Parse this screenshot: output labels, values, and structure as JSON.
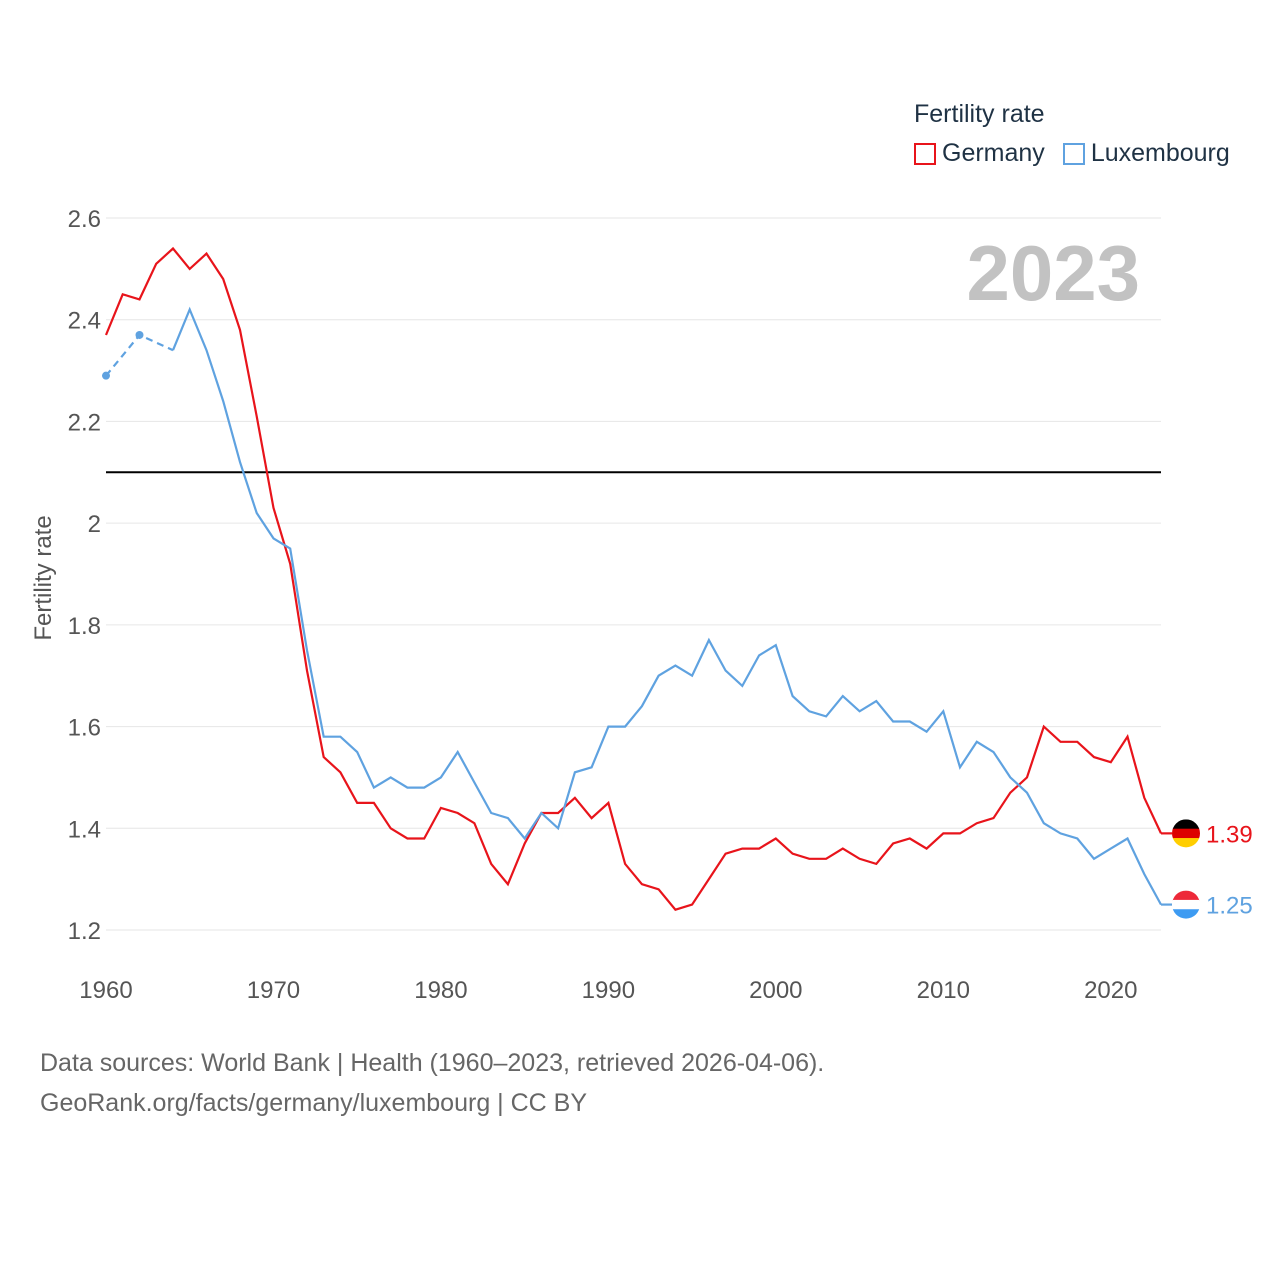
{
  "legend": {
    "title": "Fertility rate"
  },
  "year_label": "2023",
  "reference_line": {
    "value": 2.1,
    "color": "#000000"
  },
  "sources": {
    "line1": "Data sources: World Bank | Health (1960–2023, retrieved 2026-04-06).",
    "line2": "GeoRank.org/facts/germany/luxembourg | CC BY"
  },
  "chart_data": {
    "type": "line",
    "title": "",
    "xlabel": "",
    "ylabel": "Fertility rate",
    "xlim": [
      1960,
      2023
    ],
    "ylim": [
      1.2,
      2.6
    ],
    "x_ticks": [
      1960,
      1970,
      1980,
      1990,
      2000,
      2010,
      2020
    ],
    "y_ticks": [
      1.2,
      1.4,
      1.6,
      1.8,
      2,
      2.2,
      2.4,
      2.6
    ],
    "y_tick_labels": [
      "1.2",
      "1.4",
      "1.6",
      "1.8",
      "2",
      "2.2",
      "2.4",
      "2.6"
    ],
    "x": [
      1960,
      1961,
      1962,
      1963,
      1964,
      1965,
      1966,
      1967,
      1968,
      1969,
      1970,
      1971,
      1972,
      1973,
      1974,
      1975,
      1976,
      1977,
      1978,
      1979,
      1980,
      1981,
      1982,
      1983,
      1984,
      1985,
      1986,
      1987,
      1988,
      1989,
      1990,
      1991,
      1992,
      1993,
      1994,
      1995,
      1996,
      1997,
      1998,
      1999,
      2000,
      2001,
      2002,
      2003,
      2004,
      2005,
      2006,
      2007,
      2008,
      2009,
      2010,
      2011,
      2012,
      2013,
      2014,
      2015,
      2016,
      2017,
      2018,
      2019,
      2020,
      2021,
      2022,
      2023
    ],
    "series": [
      {
        "name": "Germany",
        "color": "#e8141b",
        "end_label": "1.39",
        "flag": "germany",
        "values": [
          2.37,
          2.45,
          2.44,
          2.51,
          2.54,
          2.5,
          2.53,
          2.48,
          2.38,
          2.21,
          2.03,
          1.92,
          1.71,
          1.54,
          1.51,
          1.45,
          1.45,
          1.4,
          1.38,
          1.38,
          1.44,
          1.43,
          1.41,
          1.33,
          1.29,
          1.37,
          1.43,
          1.43,
          1.46,
          1.42,
          1.45,
          1.33,
          1.29,
          1.28,
          1.24,
          1.25,
          1.3,
          1.35,
          1.36,
          1.36,
          1.38,
          1.35,
          1.34,
          1.34,
          1.36,
          1.34,
          1.33,
          1.37,
          1.38,
          1.36,
          1.39,
          1.39,
          1.41,
          1.42,
          1.47,
          1.5,
          1.6,
          1.57,
          1.57,
          1.54,
          1.53,
          1.58,
          1.46,
          1.39
        ]
      },
      {
        "name": "Luxembourg",
        "color": "#5fa2e0",
        "end_label": "1.25",
        "flag": "luxembourg",
        "dashed_until": 1964,
        "values": [
          2.29,
          null,
          2.37,
          null,
          2.34,
          2.42,
          2.34,
          2.24,
          2.12,
          2.02,
          1.97,
          1.95,
          1.75,
          1.58,
          1.58,
          1.55,
          1.48,
          1.5,
          1.48,
          1.48,
          1.5,
          1.55,
          1.49,
          1.43,
          1.42,
          1.38,
          1.43,
          1.4,
          1.51,
          1.52,
          1.6,
          1.6,
          1.64,
          1.7,
          1.72,
          1.7,
          1.77,
          1.71,
          1.68,
          1.74,
          1.76,
          1.66,
          1.63,
          1.62,
          1.66,
          1.63,
          1.65,
          1.61,
          1.61,
          1.59,
          1.63,
          1.52,
          1.57,
          1.55,
          1.5,
          1.47,
          1.41,
          1.39,
          1.38,
          1.34,
          1.36,
          1.38,
          1.31,
          1.25
        ]
      }
    ]
  }
}
